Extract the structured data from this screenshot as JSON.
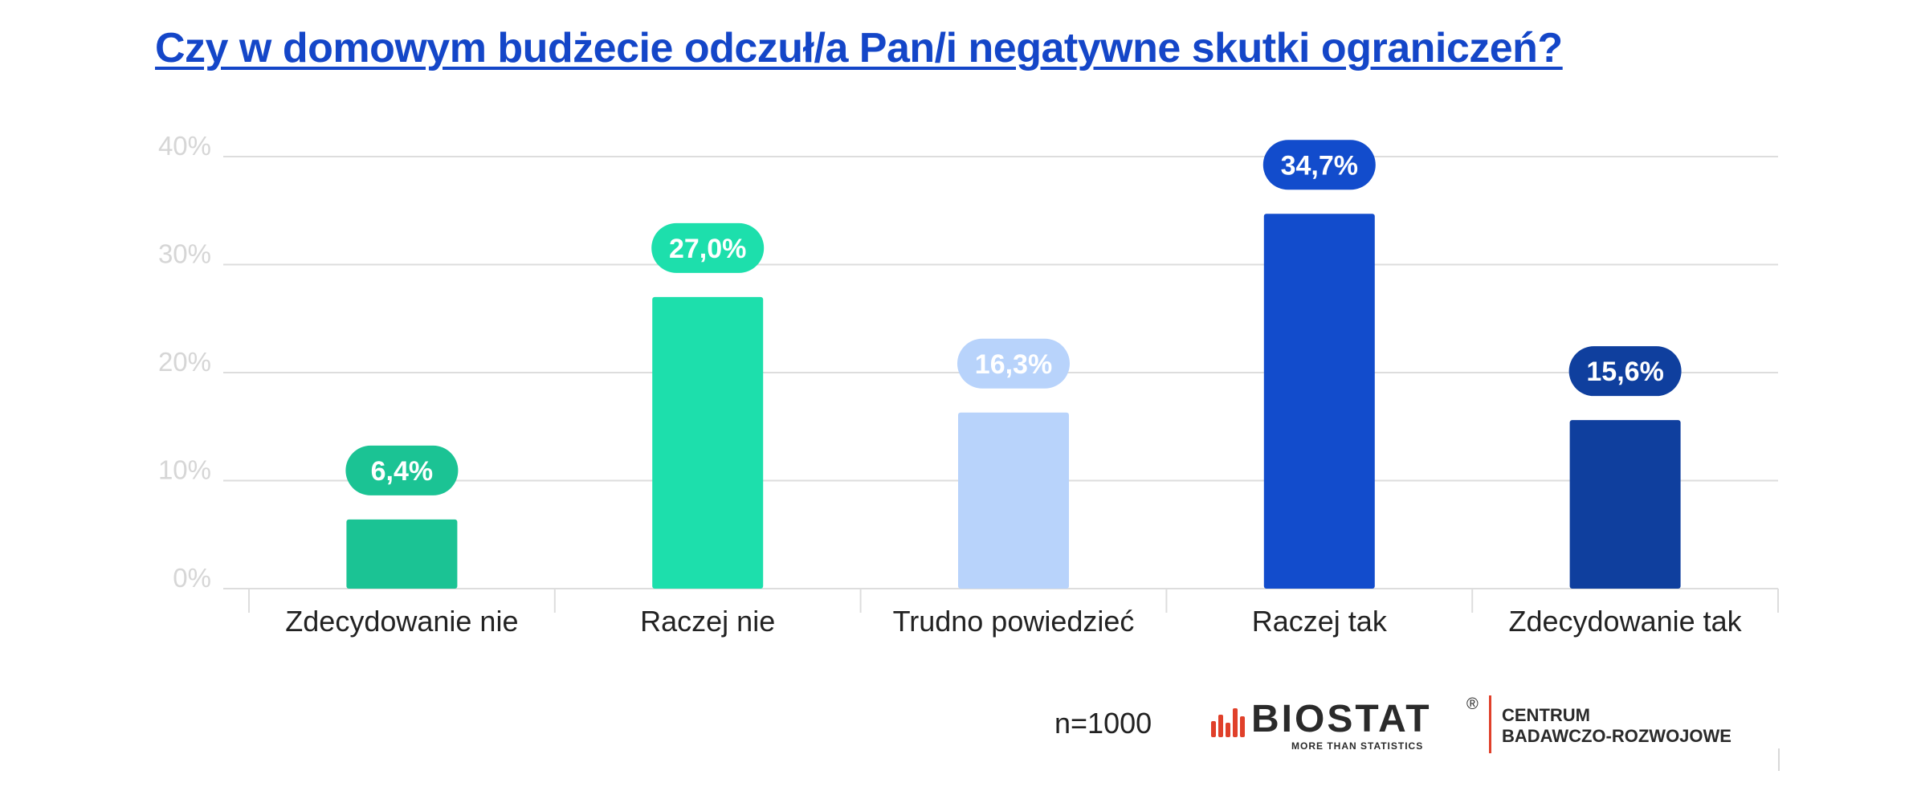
{
  "title": "Czy w domowym budżecie odczuł/a Pan/i negatywne skutki ograniczeń?",
  "footer": {
    "sample": "n=1000",
    "logo_word": "BIOSTAT",
    "logo_reg": "®",
    "logo_tagline": "MORE THAN STATISTICS",
    "centrum_line1": "CENTRUM",
    "centrum_line2": "BADAWCZO-ROZWOJOWE"
  },
  "colors": {
    "title": "#1446C8",
    "logo_bars": "#E0402A",
    "grid": "#dddddd",
    "tick_label": "#d6d6d6",
    "category_label": "#222222"
  },
  "chart_data": {
    "type": "bar",
    "title": "Czy w domowym budżecie odczuł/a Pan/i negatywne skutki ograniczeń?",
    "xlabel": "",
    "ylabel": "",
    "categories": [
      "Zdecydowanie nie",
      "Raczej nie",
      "Trudno powiedzieć",
      "Raczej tak",
      "Zdecydowanie tak"
    ],
    "values": [
      6.4,
      27.0,
      16.3,
      34.7,
      15.6
    ],
    "value_labels": [
      "6,4%",
      "27,0%",
      "16,3%",
      "34,7%",
      "15,6%"
    ],
    "bar_colors": [
      "#1BC394",
      "#1DDFAC",
      "#B8D3FB",
      "#124CCC",
      "#0F3F9E"
    ],
    "ylim": [
      0,
      40
    ],
    "yticks": [
      0,
      10,
      20,
      30,
      40
    ],
    "ytick_labels": [
      "0%",
      "10%",
      "20%",
      "30%",
      "40%"
    ],
    "grid": true,
    "legend": "none"
  }
}
